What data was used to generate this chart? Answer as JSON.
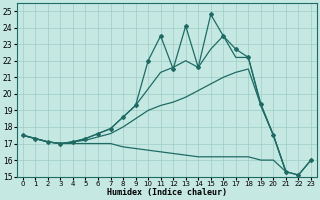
{
  "xlabel": "Humidex (Indice chaleur)",
  "xlim": [
    -0.5,
    23.5
  ],
  "ylim": [
    15,
    25.5
  ],
  "yticks": [
    15,
    16,
    17,
    18,
    19,
    20,
    21,
    22,
    23,
    24,
    25
  ],
  "xticks": [
    0,
    1,
    2,
    3,
    4,
    5,
    6,
    7,
    8,
    9,
    10,
    11,
    12,
    13,
    14,
    15,
    16,
    17,
    18,
    19,
    20,
    21,
    22,
    23
  ],
  "bg_color": "#c5e8e3",
  "line_color": "#1f6b64",
  "grid_color": "#9ecdc6",
  "series": [
    {
      "x": [
        0,
        1,
        2,
        3,
        4,
        5,
        6,
        7,
        8,
        9,
        10,
        11,
        12,
        13,
        14,
        15,
        16,
        17,
        18,
        19,
        20,
        21,
        22,
        23
      ],
      "y": [
        17.5,
        17.3,
        17.1,
        17.0,
        17.0,
        17.0,
        17.0,
        17.0,
        16.8,
        16.7,
        16.6,
        16.5,
        16.4,
        16.3,
        16.2,
        16.2,
        16.2,
        16.2,
        16.2,
        16.0,
        16.0,
        15.3,
        15.1,
        16.0
      ],
      "marker": false,
      "lw": 0.9
    },
    {
      "x": [
        0,
        1,
        2,
        3,
        4,
        5,
        6,
        7,
        8,
        9,
        10,
        11,
        12,
        13,
        14,
        15,
        16,
        17,
        18,
        19,
        20,
        21
      ],
      "y": [
        17.5,
        17.3,
        17.1,
        17.0,
        17.1,
        17.2,
        17.4,
        17.6,
        18.0,
        18.5,
        19.0,
        19.3,
        19.5,
        19.8,
        20.2,
        20.6,
        21.0,
        21.3,
        21.5,
        19.3,
        17.5,
        15.3
      ],
      "marker": false,
      "lw": 0.9
    },
    {
      "x": [
        0,
        1,
        2,
        3,
        4,
        5,
        6,
        7,
        8,
        9,
        10,
        11,
        12,
        13,
        14,
        15,
        16,
        17,
        18,
        19,
        20,
        21
      ],
      "y": [
        17.5,
        17.3,
        17.1,
        17.0,
        17.1,
        17.3,
        17.6,
        17.9,
        18.6,
        19.3,
        20.3,
        21.3,
        21.6,
        22.0,
        21.6,
        22.7,
        23.5,
        22.2,
        22.2,
        19.3,
        17.5,
        15.3
      ],
      "marker": false,
      "lw": 0.9
    },
    {
      "x": [
        0,
        1,
        2,
        3,
        4,
        5,
        6,
        7,
        8,
        9,
        10,
        11,
        12,
        13,
        14,
        15,
        16,
        17,
        18,
        19,
        20,
        21,
        22,
        23
      ],
      "y": [
        17.5,
        17.3,
        17.1,
        17.0,
        17.1,
        17.3,
        17.6,
        17.9,
        18.6,
        19.3,
        22.0,
        23.5,
        21.5,
        24.1,
        21.6,
        24.8,
        23.5,
        22.7,
        22.2,
        19.4,
        17.5,
        15.3,
        15.1,
        16.0
      ],
      "marker": true,
      "lw": 0.9
    }
  ]
}
